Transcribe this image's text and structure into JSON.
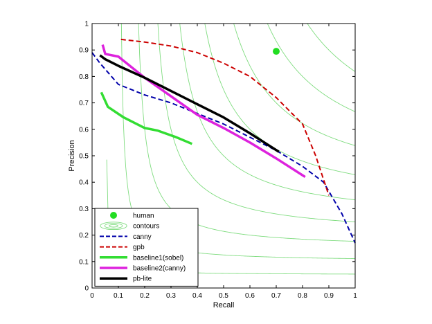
{
  "chart_data": {
    "type": "line",
    "xlabel": "Recall",
    "ylabel": "Precision",
    "xlim": [
      0,
      1
    ],
    "ylim": [
      0,
      1
    ],
    "xticks": [
      "0",
      "0.1",
      "0.2",
      "0.3",
      "0.4",
      "0.5",
      "0.6",
      "0.7",
      "0.8",
      "0.9",
      "1"
    ],
    "yticks": [
      "0",
      "0.1",
      "0.2",
      "0.3",
      "0.4",
      "0.5",
      "0.6",
      "0.7",
      "0.8",
      "0.9",
      "1"
    ],
    "grid": false,
    "legend_position": "bottom-left",
    "contour_levels": [
      0.1,
      0.2,
      0.3,
      0.4,
      0.5,
      0.6,
      0.7,
      0.8,
      0.9
    ],
    "human_point": {
      "name": "human",
      "x": 0.7,
      "y": 0.895,
      "color": "#22dd22"
    },
    "series": [
      {
        "name": "canny",
        "color": "#0000aa",
        "style": "dashed",
        "x": [
          0.0,
          0.03,
          0.1,
          0.2,
          0.3,
          0.4,
          0.5,
          0.6,
          0.7,
          0.8,
          0.88,
          0.95,
          1.0
        ],
        "y": [
          0.89,
          0.85,
          0.77,
          0.73,
          0.7,
          0.66,
          0.62,
          0.57,
          0.52,
          0.46,
          0.4,
          0.28,
          0.17
        ]
      },
      {
        "name": "gpb",
        "color": "#cc0000",
        "style": "dashed",
        "x": [
          0.11,
          0.2,
          0.3,
          0.4,
          0.5,
          0.6,
          0.7,
          0.8,
          0.85,
          0.9
        ],
        "y": [
          0.94,
          0.93,
          0.915,
          0.89,
          0.85,
          0.8,
          0.72,
          0.62,
          0.5,
          0.35
        ]
      },
      {
        "name": "baseline1(sobel)",
        "color": "#33dd33",
        "style": "solid",
        "x": [
          0.035,
          0.06,
          0.12,
          0.2,
          0.25,
          0.32,
          0.38
        ],
        "y": [
          0.74,
          0.685,
          0.645,
          0.605,
          0.595,
          0.57,
          0.545
        ]
      },
      {
        "name": "baseline2(canny)",
        "color": "#dd22dd",
        "style": "solid",
        "x": [
          0.04,
          0.05,
          0.1,
          0.2,
          0.3,
          0.4,
          0.5,
          0.6,
          0.7,
          0.81
        ],
        "y": [
          0.92,
          0.885,
          0.875,
          0.795,
          0.725,
          0.655,
          0.605,
          0.55,
          0.49,
          0.42
        ]
      },
      {
        "name": "pb-lite",
        "color": "#000000",
        "style": "solid",
        "x": [
          0.03,
          0.05,
          0.1,
          0.2,
          0.3,
          0.4,
          0.5,
          0.6,
          0.71
        ],
        "y": [
          0.88,
          0.865,
          0.84,
          0.795,
          0.745,
          0.695,
          0.645,
          0.585,
          0.515
        ]
      }
    ]
  }
}
